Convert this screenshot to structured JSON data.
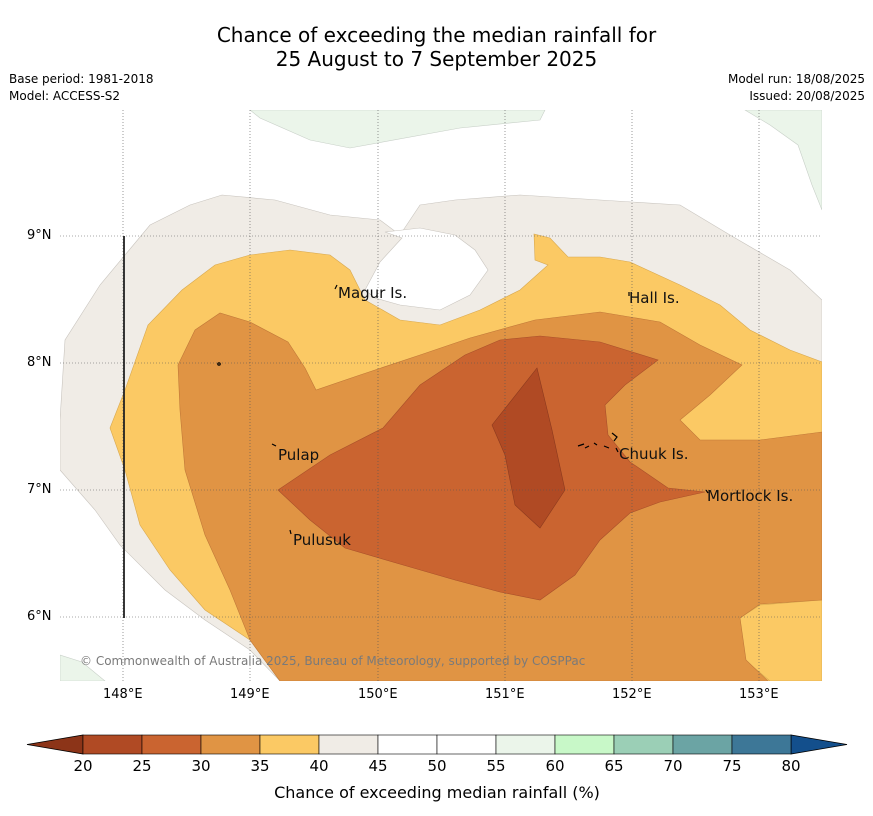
{
  "title_line1": "Chance of exceeding the median rainfall for",
  "title_line2": "25 August to 7 September 2025",
  "base_period": "Base period: 1981-2018",
  "model": "Model: ACCESS-S2",
  "model_run": "Model run: 18/08/2025",
  "issued": "Issued: 20/08/2025",
  "copyright": "© Commonwealth of Australia 2025, Bureau of Meteorology, supported by COSPPac",
  "lat_labels": [
    "9°N",
    "8°N",
    "7°N",
    "6°N"
  ],
  "lon_labels": [
    "148°E",
    "149°E",
    "150°E",
    "151°E",
    "152°E",
    "153°E"
  ],
  "places": [
    "Magur Is.",
    "Hall Is.",
    "Pulap",
    "Chuuk Is.",
    "Mortlock Is.",
    "Pulusuk"
  ],
  "colorbar": {
    "label": "Chance of exceeding median rainfall (%)",
    "ticks": [
      "20",
      "25",
      "30",
      "35",
      "40",
      "45",
      "50",
      "55",
      "60",
      "65",
      "70",
      "75",
      "80"
    ],
    "colors": [
      "#b04a24",
      "#ca6430",
      "#e09444",
      "#fbc964",
      "#f0ece6",
      "#ffffff",
      "#ffffff",
      "#ebf5ea",
      "#c8f8c8",
      "#9bcfb6",
      "#6ba4a4",
      "#3d7797"
    ],
    "low_extend_color": "#8c3418",
    "high_extend_color": "#134f8c"
  }
}
